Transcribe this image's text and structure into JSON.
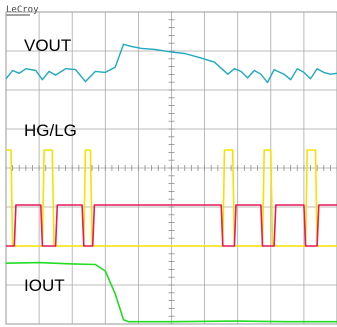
{
  "brand": "LeCroy",
  "chart_data": {
    "type": "line",
    "grid": {
      "divisions_x": 10,
      "divisions_y": 8,
      "visible": true
    },
    "labels": [
      "VOUT",
      "HG/LG",
      "IOUT"
    ],
    "series": [
      {
        "name": "VOUT",
        "color": "#1fa9c1",
        "kind": "sawtooth",
        "y_range": [
          0,
          1
        ],
        "points": [
          [
            0.0,
            0.2
          ],
          [
            0.02,
            0.38
          ],
          [
            0.04,
            0.32
          ],
          [
            0.06,
            0.42
          ],
          [
            0.09,
            0.38
          ],
          [
            0.11,
            0.18
          ],
          [
            0.13,
            0.36
          ],
          [
            0.15,
            0.28
          ],
          [
            0.18,
            0.42
          ],
          [
            0.21,
            0.4
          ],
          [
            0.24,
            0.14
          ],
          [
            0.27,
            0.36
          ],
          [
            0.3,
            0.34
          ],
          [
            0.33,
            0.45
          ],
          [
            0.355,
            0.95
          ],
          [
            0.38,
            0.9
          ],
          [
            0.41,
            0.86
          ],
          [
            0.45,
            0.84
          ],
          [
            0.5,
            0.78
          ],
          [
            0.54,
            0.75
          ],
          [
            0.59,
            0.65
          ],
          [
            0.63,
            0.56
          ],
          [
            0.67,
            0.3
          ],
          [
            0.69,
            0.42
          ],
          [
            0.71,
            0.36
          ],
          [
            0.73,
            0.22
          ],
          [
            0.75,
            0.38
          ],
          [
            0.77,
            0.3
          ],
          [
            0.79,
            0.12
          ],
          [
            0.81,
            0.4
          ],
          [
            0.84,
            0.3
          ],
          [
            0.86,
            0.18
          ],
          [
            0.88,
            0.42
          ],
          [
            0.9,
            0.34
          ],
          [
            0.92,
            0.2
          ],
          [
            0.94,
            0.42
          ],
          [
            0.96,
            0.34
          ],
          [
            0.98,
            0.3
          ],
          [
            1.0,
            0.32
          ]
        ]
      },
      {
        "name": "HG",
        "color": "#f5e200",
        "kind": "digital",
        "y_range": [
          0,
          1
        ],
        "points": [
          [
            0.0,
            1
          ],
          [
            0.015,
            1
          ],
          [
            0.02,
            0
          ],
          [
            0.11,
            0
          ],
          [
            0.115,
            1
          ],
          [
            0.14,
            1
          ],
          [
            0.145,
            0
          ],
          [
            0.235,
            0
          ],
          [
            0.24,
            1
          ],
          [
            0.255,
            1
          ],
          [
            0.26,
            0
          ],
          [
            0.655,
            0
          ],
          [
            0.66,
            1
          ],
          [
            0.685,
            1
          ],
          [
            0.69,
            0
          ],
          [
            0.775,
            0
          ],
          [
            0.78,
            1
          ],
          [
            0.8,
            1
          ],
          [
            0.805,
            0
          ],
          [
            0.905,
            0
          ],
          [
            0.91,
            1
          ],
          [
            0.935,
            1
          ],
          [
            0.94,
            0
          ],
          [
            1.0,
            0
          ]
        ]
      },
      {
        "name": "LG",
        "color": "#e8185a",
        "kind": "digital",
        "y_range": [
          0,
          1
        ],
        "points": [
          [
            0.0,
            0
          ],
          [
            0.025,
            0
          ],
          [
            0.03,
            1
          ],
          [
            0.105,
            1
          ],
          [
            0.11,
            0
          ],
          [
            0.15,
            0
          ],
          [
            0.155,
            1
          ],
          [
            0.23,
            1
          ],
          [
            0.235,
            0
          ],
          [
            0.262,
            0
          ],
          [
            0.267,
            1
          ],
          [
            0.65,
            1
          ],
          [
            0.655,
            0
          ],
          [
            0.69,
            0
          ],
          [
            0.695,
            1
          ],
          [
            0.77,
            1
          ],
          [
            0.775,
            0
          ],
          [
            0.81,
            0
          ],
          [
            0.815,
            1
          ],
          [
            0.9,
            1
          ],
          [
            0.905,
            0
          ],
          [
            0.94,
            0
          ],
          [
            0.945,
            1
          ],
          [
            1.0,
            1
          ]
        ]
      },
      {
        "name": "IOUT",
        "color": "#22dd22",
        "kind": "step-down",
        "y_range": [
          0,
          1
        ],
        "points": [
          [
            0.0,
            0.92
          ],
          [
            0.1,
            0.93
          ],
          [
            0.2,
            0.91
          ],
          [
            0.27,
            0.9
          ],
          [
            0.3,
            0.8
          ],
          [
            0.33,
            0.45
          ],
          [
            0.355,
            0.05
          ],
          [
            0.37,
            0.02
          ],
          [
            0.5,
            0.02
          ],
          [
            0.7,
            0.03
          ],
          [
            0.85,
            0.02
          ],
          [
            1.0,
            0.02
          ]
        ]
      }
    ]
  }
}
